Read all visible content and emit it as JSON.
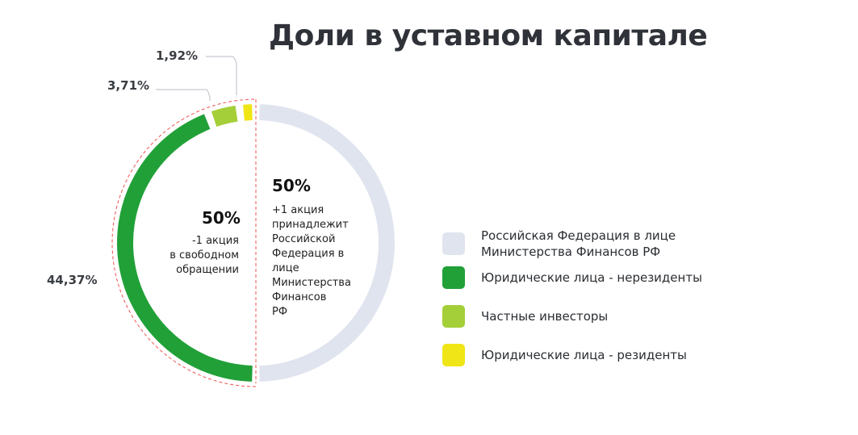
{
  "chart_data": {
    "type": "pie",
    "title": "Доли в уставном капитале",
    "series": [
      {
        "name": "Российская Федерация в лице Министерства Финансов РФ",
        "value": 50,
        "label": "",
        "color": "#e0e4ee"
      },
      {
        "name": "Юридические лица - нерезиденты",
        "value": 44.37,
        "label": "44,37%",
        "color": "#21a038"
      },
      {
        "name": "Частные инвесторы",
        "value": 3.71,
        "label": "3,71%",
        "color": "#a5cf39"
      },
      {
        "name": "Юридические лица - резиденты",
        "value": 1.92,
        "label": "1,92%",
        "color": "#f0e516"
      }
    ],
    "left_note": {
      "value": "50%",
      "text": [
        "-1 акция",
        "в свободном",
        "обращении"
      ]
    },
    "right_note": {
      "value": "50%",
      "text": [
        "+1 акция",
        "принадлежит",
        "Российской",
        "Федерация в",
        "лице",
        "Министерства",
        "Финансов",
        "РФ"
      ]
    },
    "legend_position": "right"
  }
}
